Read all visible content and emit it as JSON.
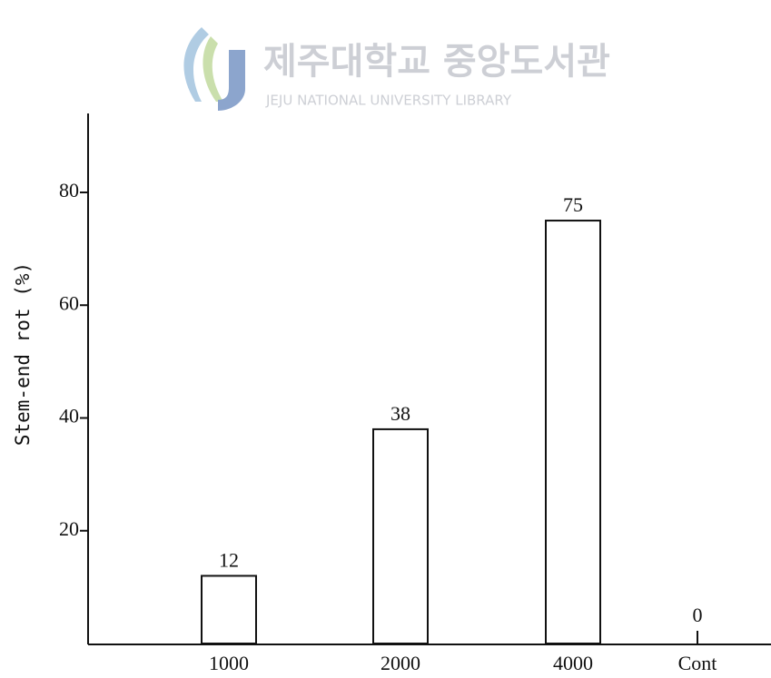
{
  "watermark": {
    "title": "제주대학교 중앙도서관",
    "subtitle": "JEJU NATIONAL UNIVERSITY LIBRARY"
  },
  "chart_data": {
    "type": "bar",
    "y_label": "Stem-end rot (%)",
    "categories": [
      "1000",
      "2000",
      "4000",
      "Cont"
    ],
    "values": [
      12,
      38,
      75,
      0
    ],
    "color": "#ffffff",
    "ylim": [
      0,
      94
    ],
    "yticks": [
      20,
      40,
      60,
      80
    ],
    "grid": false
  }
}
